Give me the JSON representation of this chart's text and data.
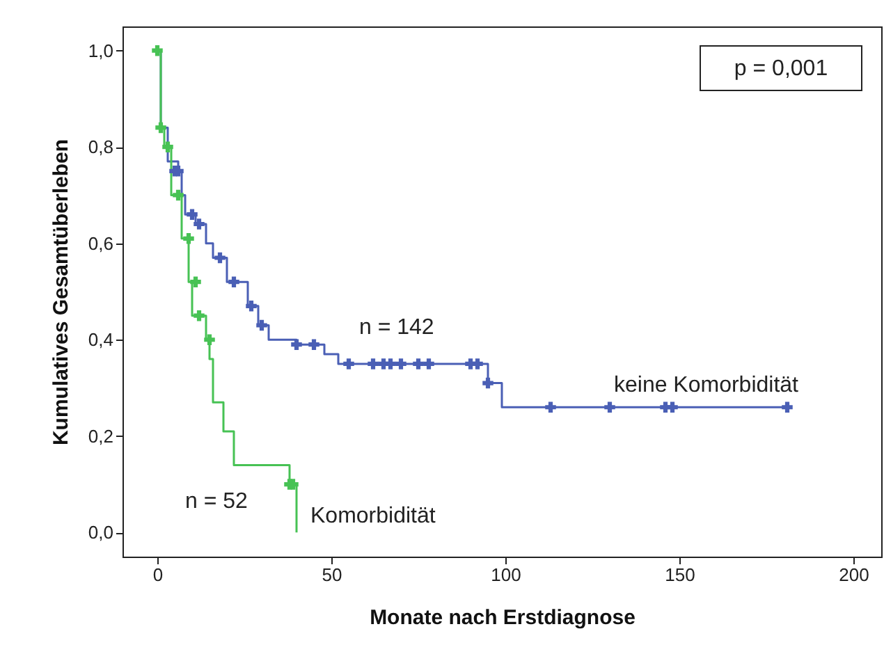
{
  "chart_data": {
    "type": "step",
    "xlabel": "Monate nach Erstdiagnose",
    "ylabel": "Kumulatives Gesamtüberleben",
    "xlim": [
      -10,
      208
    ],
    "ylim": [
      -0.05,
      1.05
    ],
    "xticks": [
      0,
      50,
      100,
      150,
      200
    ],
    "yticks": [
      {
        "value": 0,
        "label": "0,0"
      },
      {
        "value": 0.2,
        "label": "0,2"
      },
      {
        "value": 0.4,
        "label": "0,4"
      },
      {
        "value": 0.6,
        "label": "0,6"
      },
      {
        "value": 0.8,
        "label": "0,8"
      },
      {
        "value": 1,
        "label": "1,0"
      }
    ],
    "grid": false,
    "series": [
      {
        "name": "keine Komorbidität",
        "color": "#4a5fb5",
        "marker": "none",
        "x": [
          0,
          1,
          3,
          6,
          7,
          8,
          11,
          14,
          16,
          20,
          26,
          29,
          32,
          40,
          48,
          52,
          95,
          99,
          181
        ],
        "values": [
          1.0,
          0.84,
          0.77,
          0.75,
          0.7,
          0.66,
          0.64,
          0.6,
          0.57,
          0.52,
          0.47,
          0.43,
          0.4,
          0.39,
          0.37,
          0.35,
          0.31,
          0.26,
          0.26
        ]
      },
      {
        "name": "Komorbidität",
        "color": "#47c254",
        "marker": "none",
        "x": [
          0,
          1,
          2,
          4,
          7,
          9,
          10,
          14,
          15,
          16,
          19,
          22,
          38,
          40
        ],
        "values": [
          1.0,
          0.84,
          0.8,
          0.7,
          0.61,
          0.52,
          0.45,
          0.4,
          0.36,
          0.27,
          0.21,
          0.14,
          0.1,
          0.0
        ]
      },
      {
        "type": "scatter",
        "color": "#4a5fb5",
        "marker": "cross",
        "x": [
          5,
          6,
          10,
          12,
          18,
          22,
          27,
          30,
          40,
          45,
          55,
          62,
          65,
          67,
          70,
          75,
          78,
          90,
          92,
          95,
          113,
          130,
          146,
          148,
          181
        ],
        "values": [
          0.75,
          0.75,
          0.66,
          0.64,
          0.57,
          0.52,
          0.47,
          0.43,
          0.39,
          0.39,
          0.35,
          0.35,
          0.35,
          0.35,
          0.35,
          0.35,
          0.35,
          0.35,
          0.35,
          0.31,
          0.26,
          0.26,
          0.26,
          0.26,
          0.26
        ]
      },
      {
        "type": "scatter",
        "color": "#47c254",
        "marker": "cross",
        "x": [
          0,
          1,
          3,
          6,
          9,
          11,
          12,
          15,
          38,
          39
        ],
        "values": [
          1.0,
          0.84,
          0.8,
          0.7,
          0.61,
          0.52,
          0.45,
          0.4,
          0.1,
          0.1
        ]
      }
    ],
    "annotations": [
      "p = 0,001",
      "n = 142",
      "n = 52"
    ]
  }
}
